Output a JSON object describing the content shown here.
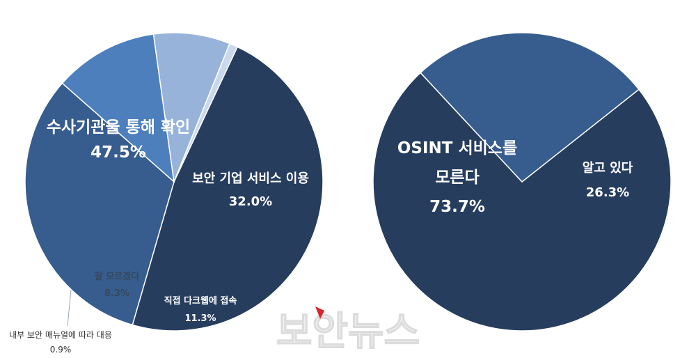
{
  "chart_data": [
    {
      "type": "pie",
      "slices": [
        {
          "label": "수사기관을 통해 확인",
          "value_label": "47.5%",
          "value": 47.5,
          "color": "#263d5e"
        },
        {
          "label": "보안 기업 서비스 이용",
          "value_label": "32.0%",
          "value": 32.0,
          "color": "#375c8e"
        },
        {
          "label": "직접 다크웹에 접속",
          "value_label": "11.3%",
          "value": 11.3,
          "color": "#4d7fbd"
        },
        {
          "label": "잘 모르겠다",
          "value_label": "8.3%",
          "value": 8.3,
          "color": "#97b3da"
        },
        {
          "label": "내부 보안 매뉴얼에 따라 대응",
          "value_label": "0.9%",
          "value": 0.9,
          "color": "#c9d8ec"
        }
      ]
    },
    {
      "type": "pie",
      "slices": [
        {
          "label_lines": [
            "OSINT 서비스를",
            "모른다"
          ],
          "value_label": "73.7%",
          "value": 73.7,
          "color": "#263d5e"
        },
        {
          "label_lines": [
            "알고 있다"
          ],
          "value_label": "26.3%",
          "value": 26.3,
          "color": "#375c8e"
        }
      ]
    }
  ],
  "watermark": {
    "text": "보안뉴스"
  }
}
